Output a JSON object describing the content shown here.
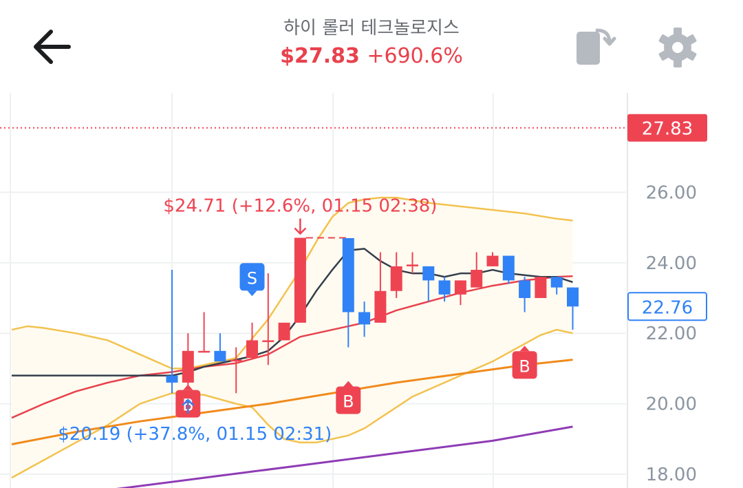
{
  "header": {
    "stock_name": "하이 롤러 테크놀로지스",
    "price": "$27.83",
    "change": "+690.6%",
    "back_icon": "arrow-left-icon",
    "rotate_icon": "rotate-screen-icon",
    "settings_icon": "gear-icon"
  },
  "colors": {
    "up": "#ee4452",
    "down": "#3182f6",
    "ma_short": "#333d4b",
    "ma_mid": "#e8414d",
    "ma_long": "#f08a1c",
    "ma_xlong": "#8e3bb5",
    "bollinger": "#f2c24e"
  },
  "chart_data": {
    "type": "candlestick",
    "y_ticks": [
      "18.00",
      "20.00",
      "22.00",
      "24.00",
      "26.00"
    ],
    "ylim": [
      18,
      28.2
    ],
    "current_price_label": "27.83",
    "current_price": 27.83,
    "last_price_label": "22.76",
    "last_price": 22.76,
    "candles": [
      {
        "i": 0,
        "o": 20.8,
        "h": 23.8,
        "l": 20.3,
        "c": 20.6
      },
      {
        "i": 1,
        "o": 20.6,
        "h": 22.0,
        "l": 20.5,
        "c": 21.5
      },
      {
        "i": 2,
        "o": 21.5,
        "h": 22.6,
        "l": 21.5,
        "c": 21.5
      },
      {
        "i": 3,
        "o": 21.5,
        "h": 22.0,
        "l": 21.2,
        "c": 21.2
      },
      {
        "i": 4,
        "o": 21.2,
        "h": 21.6,
        "l": 20.3,
        "c": 21.25
      },
      {
        "i": 5,
        "o": 21.3,
        "h": 22.3,
        "l": 21.3,
        "c": 21.8
      },
      {
        "i": 6,
        "o": 21.8,
        "h": 23.7,
        "l": 21.1,
        "c": 21.8
      },
      {
        "i": 7,
        "o": 21.8,
        "h": 22.3,
        "l": 21.8,
        "c": 22.3
      },
      {
        "i": 8,
        "o": 22.3,
        "h": 24.71,
        "l": 22.3,
        "c": 24.71
      },
      {
        "i": 11,
        "o": 24.7,
        "h": 24.7,
        "l": 21.6,
        "c": 22.6
      },
      {
        "i": 12,
        "o": 22.6,
        "h": 22.9,
        "l": 21.9,
        "c": 22.25
      },
      {
        "i": 13,
        "o": 22.3,
        "h": 24.3,
        "l": 22.3,
        "c": 23.2
      },
      {
        "i": 14,
        "o": 23.2,
        "h": 24.3,
        "l": 23.0,
        "c": 23.9
      },
      {
        "i": 15,
        "o": 23.9,
        "h": 24.3,
        "l": 23.7,
        "c": 23.95
      },
      {
        "i": 16,
        "o": 23.9,
        "h": 23.9,
        "l": 22.9,
        "c": 23.5
      },
      {
        "i": 17,
        "o": 23.5,
        "h": 23.6,
        "l": 22.9,
        "c": 23.1
      },
      {
        "i": 18,
        "o": 23.1,
        "h": 23.5,
        "l": 22.8,
        "c": 23.5
      },
      {
        "i": 19,
        "o": 23.3,
        "h": 24.3,
        "l": 23.3,
        "c": 23.8
      },
      {
        "i": 20,
        "o": 23.9,
        "h": 24.3,
        "l": 23.9,
        "c": 24.2
      },
      {
        "i": 21,
        "o": 24.2,
        "h": 24.2,
        "l": 23.4,
        "c": 23.5
      },
      {
        "i": 22,
        "o": 23.5,
        "h": 23.6,
        "l": 22.6,
        "c": 23.0
      },
      {
        "i": 23,
        "o": 23.0,
        "h": 23.6,
        "l": 23.0,
        "c": 23.6
      },
      {
        "i": 24,
        "o": 23.6,
        "h": 23.6,
        "l": 23.1,
        "c": 23.3
      },
      {
        "i": 25,
        "o": 23.3,
        "h": 23.3,
        "l": 22.1,
        "c": 22.76
      }
    ],
    "ma_short": [
      [
        -10,
        20.8
      ],
      [
        0,
        20.8
      ],
      [
        1,
        20.9
      ],
      [
        2,
        21.05
      ],
      [
        3,
        21.15
      ],
      [
        4,
        21.25
      ],
      [
        5,
        21.35
      ],
      [
        6,
        21.5
      ],
      [
        7,
        21.9
      ],
      [
        8,
        22.5
      ],
      [
        9,
        23.2
      ],
      [
        10,
        23.8
      ],
      [
        11,
        24.35
      ],
      [
        12,
        24.4
      ],
      [
        13,
        24.05
      ],
      [
        14,
        23.8
      ],
      [
        15,
        23.7
      ],
      [
        16,
        23.7
      ],
      [
        17,
        23.6
      ],
      [
        18,
        23.7
      ],
      [
        19,
        23.7
      ],
      [
        20,
        23.8
      ],
      [
        21,
        23.7
      ],
      [
        22,
        23.65
      ],
      [
        23,
        23.6
      ],
      [
        24,
        23.6
      ],
      [
        25,
        23.45
      ]
    ],
    "ma_mid": [
      [
        -10,
        19.6
      ],
      [
        -8,
        20.0
      ],
      [
        -6,
        20.35
      ],
      [
        -4,
        20.6
      ],
      [
        -2,
        20.8
      ],
      [
        0,
        20.9
      ],
      [
        2,
        21.05
      ],
      [
        4,
        21.15
      ],
      [
        6,
        21.4
      ],
      [
        8,
        21.9
      ],
      [
        10,
        22.1
      ],
      [
        12,
        22.3
      ],
      [
        14,
        22.65
      ],
      [
        16,
        22.9
      ],
      [
        18,
        23.15
      ],
      [
        20,
        23.35
      ],
      [
        22,
        23.5
      ],
      [
        24,
        23.6
      ],
      [
        25,
        23.62
      ]
    ],
    "ma_long": [
      [
        -10,
        18.85
      ],
      [
        -6,
        19.2
      ],
      [
        -2,
        19.5
      ],
      [
        2,
        19.75
      ],
      [
        6,
        20.0
      ],
      [
        10,
        20.3
      ],
      [
        14,
        20.6
      ],
      [
        18,
        20.85
      ],
      [
        22,
        21.1
      ],
      [
        25,
        21.25
      ]
    ],
    "ma_xlong": [
      [
        -10,
        17.2
      ],
      [
        -4,
        17.55
      ],
      [
        2,
        17.9
      ],
      [
        8,
        18.25
      ],
      [
        14,
        18.6
      ],
      [
        20,
        18.95
      ],
      [
        25,
        19.35
      ]
    ],
    "bollinger_upper": [
      [
        -10,
        22.1
      ],
      [
        -9,
        22.2
      ],
      [
        -8,
        22.15
      ],
      [
        -6,
        22.0
      ],
      [
        -4,
        21.8
      ],
      [
        -2,
        21.4
      ],
      [
        0,
        21.0
      ],
      [
        1,
        21.0
      ],
      [
        2,
        21.1
      ],
      [
        4,
        21.3
      ],
      [
        6,
        22.4
      ],
      [
        7,
        23.1
      ],
      [
        8,
        23.8
      ],
      [
        9,
        24.6
      ],
      [
        10,
        25.3
      ],
      [
        11,
        25.7
      ],
      [
        12,
        25.8
      ],
      [
        13,
        25.85
      ],
      [
        14,
        25.85
      ],
      [
        16,
        25.7
      ],
      [
        18,
        25.6
      ],
      [
        20,
        25.5
      ],
      [
        22,
        25.4
      ],
      [
        24,
        25.25
      ],
      [
        25,
        25.2
      ]
    ],
    "bollinger_lower": [
      [
        -10,
        17.9
      ],
      [
        -8,
        18.4
      ],
      [
        -6,
        18.9
      ],
      [
        -4,
        19.4
      ],
      [
        -2,
        20.0
      ],
      [
        0,
        20.3
      ],
      [
        2,
        20.25
      ],
      [
        4,
        20.0
      ],
      [
        5,
        19.9
      ],
      [
        6,
        19.4
      ],
      [
        7,
        19.0
      ],
      [
        8,
        18.9
      ],
      [
        9,
        18.9
      ],
      [
        10,
        19.0
      ],
      [
        11,
        19.1
      ],
      [
        12,
        19.3
      ],
      [
        13,
        19.6
      ],
      [
        14,
        19.9
      ],
      [
        15,
        20.2
      ],
      [
        16,
        20.4
      ],
      [
        18,
        20.8
      ],
      [
        20,
        21.2
      ],
      [
        22,
        21.7
      ],
      [
        23,
        21.95
      ],
      [
        24,
        22.1
      ],
      [
        25,
        22.0
      ]
    ],
    "signals": [
      {
        "label": "S",
        "i": 5,
        "price": 23.6,
        "color": "#3182f6"
      },
      {
        "label": "B",
        "i": 1,
        "price": 20.0,
        "color": "#ee4452"
      },
      {
        "label": "B",
        "i": 11,
        "price": 20.1,
        "color": "#ee4452"
      },
      {
        "label": "B",
        "i": 22.0,
        "price": 21.1,
        "color": "#ee4452"
      }
    ],
    "annotations": {
      "high": {
        "text": "$24.71 (+12.6%, 01.15 02:38)",
        "i": 8,
        "price": 24.71
      },
      "low": {
        "text": "$20.19 (+37.8%, 01.15 02:31)",
        "i": 1,
        "price": 20.19
      }
    }
  }
}
